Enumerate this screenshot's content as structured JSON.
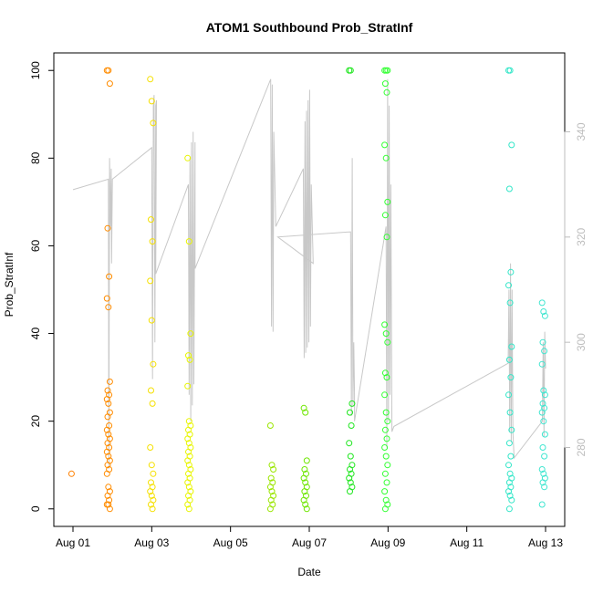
{
  "chart_data": {
    "type": "scatter",
    "title": "ATOM1 Southbound Prob_StratInf",
    "xlabel": "Date",
    "ylabel": "Prob_StratInf",
    "x_axis": {
      "range_days": [
        0,
        12.5
      ],
      "ticks": [
        {
          "day": 0,
          "label": "Aug 01"
        },
        {
          "day": 2,
          "label": "Aug 03"
        },
        {
          "day": 4,
          "label": "Aug 05"
        },
        {
          "day": 6,
          "label": "Aug 07"
        },
        {
          "day": 8,
          "label": "Aug 09"
        },
        {
          "day": 10,
          "label": "Aug 11"
        },
        {
          "day": 12,
          "label": "Aug 13"
        }
      ]
    },
    "y_axis_left": {
      "range": [
        -4,
        104
      ],
      "ticks": [
        0,
        20,
        40,
        60,
        80,
        100
      ]
    },
    "y_axis_right": {
      "range": [
        265,
        355
      ],
      "ticks": [
        280,
        300,
        320,
        340
      ],
      "color": "#bdbdbd"
    },
    "groups": [
      {
        "day": 0.0,
        "color": "#ff8000",
        "values": [
          8
        ]
      },
      {
        "day": 0.9,
        "color": "#ff8c00",
        "values": [
          100,
          100,
          97,
          64,
          53,
          48,
          46,
          29,
          27,
          26,
          25,
          24,
          22,
          21,
          19,
          18,
          17,
          16,
          15,
          14,
          13,
          12,
          11,
          10,
          9,
          8,
          5,
          4,
          3,
          2,
          1,
          1,
          0
        ]
      },
      {
        "day": 2.0,
        "color": "#f5e000",
        "values": [
          98,
          93,
          88,
          66,
          61,
          52,
          43,
          33,
          27,
          24,
          14,
          10,
          8,
          6,
          5,
          4,
          3,
          2,
          1,
          0
        ]
      },
      {
        "day": 2.95,
        "color": "#e8f500",
        "values": [
          80,
          61,
          40,
          35,
          34,
          28,
          20,
          19,
          18,
          17,
          16,
          15,
          14,
          13,
          12,
          11,
          10,
          9,
          8,
          7,
          6,
          5,
          4,
          3,
          2,
          1,
          0
        ]
      },
      {
        "day": 5.05,
        "color": "#9ae600",
        "values": [
          19,
          10,
          9,
          7,
          6,
          5,
          4,
          3,
          2,
          1,
          0
        ]
      },
      {
        "day": 5.9,
        "color": "#6ee600",
        "values": [
          23,
          22,
          11,
          9,
          8,
          7,
          6,
          5,
          4,
          3,
          2,
          1,
          0
        ]
      },
      {
        "day": 7.05,
        "color": "#1fe61f",
        "values": [
          100,
          100,
          24,
          22,
          19,
          15,
          12,
          10,
          9,
          8,
          7,
          6,
          5,
          4
        ]
      },
      {
        "day": 7.95,
        "color": "#33ff33",
        "values": [
          100,
          100,
          100,
          97,
          95,
          83,
          80,
          70,
          67,
          62,
          42,
          40,
          38,
          31,
          30,
          26,
          22,
          20,
          18,
          16,
          14,
          12,
          10,
          8,
          6,
          4,
          2,
          1,
          0
        ]
      },
      {
        "day": 11.1,
        "color": "#33e6c8",
        "values": [
          100,
          100,
          83,
          73,
          54,
          51,
          47,
          37,
          34,
          30,
          26,
          22,
          18,
          15,
          12,
          10,
          8,
          7,
          6,
          5,
          4,
          3,
          2,
          0
        ]
      },
      {
        "day": 11.95,
        "color": "#40e6d0",
        "values": [
          47,
          45,
          44,
          38,
          36,
          33,
          27,
          26,
          24,
          23,
          22,
          20,
          17,
          14,
          12,
          9,
          8,
          7,
          6,
          5,
          1
        ]
      }
    ],
    "secondary_line": {
      "color": "#c8c8c8",
      "axis": "right",
      "points": [
        [
          0,
          329
        ],
        [
          0.9,
          331
        ],
        [
          0.91,
          276
        ],
        [
          0.93,
          335
        ],
        [
          0.95,
          322
        ],
        [
          0.97,
          333
        ],
        [
          0.98,
          315
        ],
        [
          1.0,
          331
        ],
        [
          2.0,
          337
        ],
        [
          2.02,
          293
        ],
        [
          2.04,
          345
        ],
        [
          2.06,
          347
        ],
        [
          2.08,
          300
        ],
        [
          2.1,
          345
        ],
        [
          2.12,
          346
        ],
        [
          2.1,
          313
        ],
        [
          2.93,
          330
        ],
        [
          2.95,
          290
        ],
        [
          2.97,
          335
        ],
        [
          2.99,
          285
        ],
        [
          3.01,
          338
        ],
        [
          3.03,
          288
        ],
        [
          3.05,
          340
        ],
        [
          3.07,
          292
        ],
        [
          3.1,
          338
        ],
        [
          3.1,
          314
        ],
        [
          5.02,
          350
        ],
        [
          5.04,
          303
        ],
        [
          5.06,
          349
        ],
        [
          5.08,
          302
        ],
        [
          5.1,
          340
        ],
        [
          5.15,
          322
        ],
        [
          5.85,
          333
        ],
        [
          5.87,
          297
        ],
        [
          5.89,
          342
        ],
        [
          5.91,
          298
        ],
        [
          5.93,
          344
        ],
        [
          5.95,
          299
        ],
        [
          5.97,
          346
        ],
        [
          5.99,
          300
        ],
        [
          6.01,
          348
        ],
        [
          6.03,
          303
        ],
        [
          6.05,
          330
        ],
        [
          6.1,
          315
        ],
        [
          5.2,
          320
        ],
        [
          7.05,
          321
        ],
        [
          7.07,
          286
        ],
        [
          7.09,
          335
        ],
        [
          7.11,
          288
        ],
        [
          7.13,
          300
        ],
        [
          7.15,
          290
        ],
        [
          7.15,
          285
        ],
        [
          7.95,
          322
        ],
        [
          7.97,
          280
        ],
        [
          7.99,
          350
        ],
        [
          8.01,
          285
        ],
        [
          8.03,
          345
        ],
        [
          8.05,
          290
        ],
        [
          8.07,
          330
        ],
        [
          8.1,
          283
        ],
        [
          8.15,
          284
        ],
        [
          11.05,
          296
        ],
        [
          11.07,
          310
        ],
        [
          11.09,
          283
        ],
        [
          11.11,
          315
        ],
        [
          11.13,
          281
        ],
        [
          11.15,
          310
        ],
        [
          11.17,
          283
        ],
        [
          11.2,
          278
        ],
        [
          11.92,
          285
        ],
        [
          11.94,
          300
        ],
        [
          11.96,
          282
        ],
        [
          11.98,
          302
        ],
        [
          12.0,
          295
        ]
      ]
    }
  }
}
